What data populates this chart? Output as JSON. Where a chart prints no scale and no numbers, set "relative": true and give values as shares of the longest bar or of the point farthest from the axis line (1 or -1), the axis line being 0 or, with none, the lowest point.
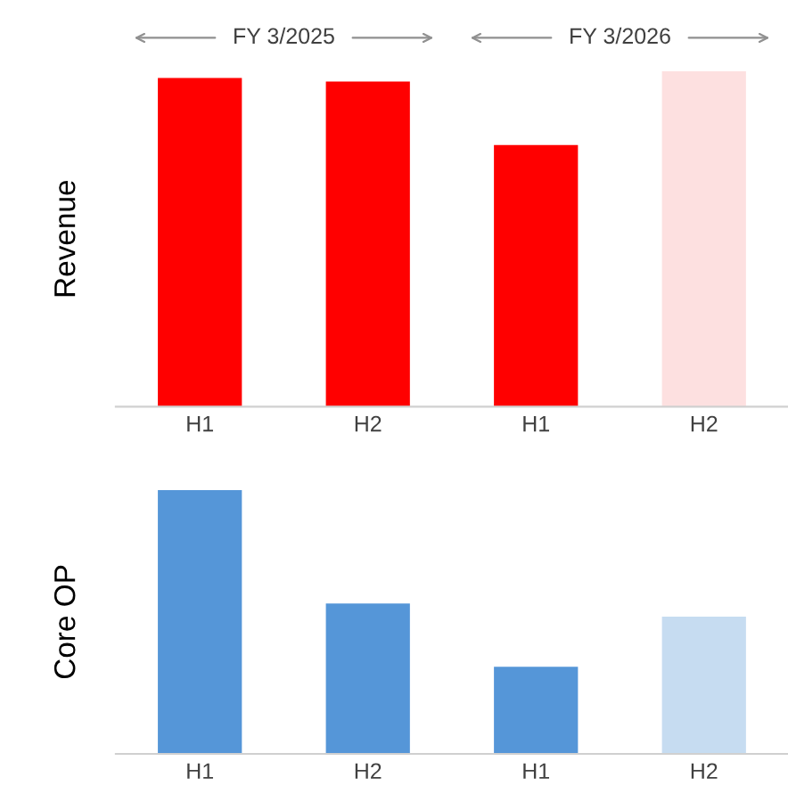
{
  "chart_data": [
    {
      "type": "bar",
      "relative": true,
      "ylabel": "Revenue",
      "categories": [
        "H1",
        "H2",
        "H1",
        "H2"
      ],
      "values": [
        0.98,
        0.97,
        0.78,
        1
      ],
      "colors": [
        "#ff0000",
        "#ff0000",
        "#ff0000",
        "#fde0e0"
      ],
      "annotations": [
        "FY 3/2025",
        "FY 3/2026"
      ],
      "grid": false,
      "legend": false
    },
    {
      "type": "bar",
      "relative": true,
      "ylabel": "Core OP",
      "categories": [
        "H1",
        "H2",
        "H1",
        "H2"
      ],
      "values": [
        1,
        0.57,
        0.33,
        0.52
      ],
      "colors": [
        "#5596d8",
        "#5596d8",
        "#5596d8",
        "#c6dcf1"
      ],
      "grid": false,
      "legend": false
    }
  ]
}
